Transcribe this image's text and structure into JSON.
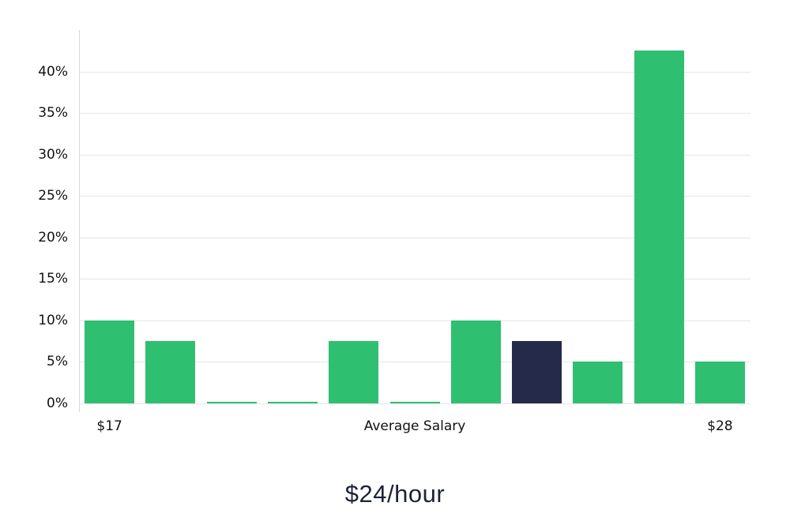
{
  "chart_data": {
    "type": "bar",
    "title": "$24/hour",
    "xlabel": "Average Salary",
    "x_end_tick_labels": [
      "$17",
      "$28"
    ],
    "values_unit": "percent",
    "values": [
      10,
      7.5,
      0.2,
      0.2,
      7.5,
      0.2,
      10,
      7.5,
      5,
      42.5,
      5
    ],
    "highlight_index": 7,
    "ylim": [
      0,
      45
    ],
    "yticks": [
      0,
      5,
      10,
      15,
      20,
      25,
      30,
      35,
      40
    ],
    "ytick_labels": [
      "0%",
      "5%",
      "10%",
      "15%",
      "20%",
      "25%",
      "30%",
      "35%",
      "40%"
    ],
    "grid": true,
    "legend": false,
    "colors": {
      "bar": "#2fbf71",
      "highlight": "#262a4a",
      "grid": "#e5e5e5",
      "axis": "#d8d8d8",
      "tick_text": "#111111",
      "title_text": "#1e2235"
    }
  }
}
